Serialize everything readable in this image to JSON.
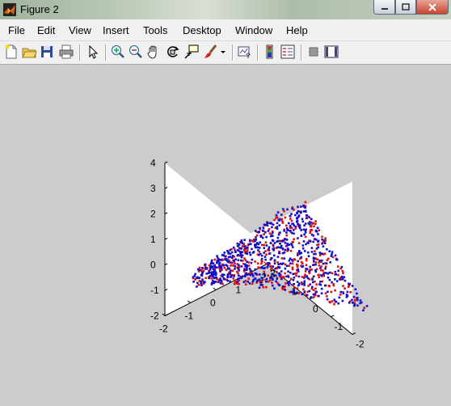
{
  "window": {
    "title": "Figure 2"
  },
  "menu": [
    "File",
    "Edit",
    "View",
    "Insert",
    "Tools",
    "Desktop",
    "Window",
    "Help"
  ],
  "toolbar": [
    "new-figure-icon",
    "open-file-icon",
    "save-icon",
    "print-icon",
    "edit-plot-arrow-icon",
    "zoom-in-icon",
    "zoom-out-icon",
    "pan-hand-icon",
    "rotate-3d-icon",
    "data-cursor-icon",
    "brush-icon",
    "brush-dropdown-icon",
    "link-plot-icon",
    "insert-colorbar-icon",
    "insert-legend-icon",
    "hide-plot-tools-icon",
    "show-plot-tools-icon"
  ],
  "colors": {
    "series_a": "#dd1111",
    "series_b": "#1111cc",
    "figure_bg": "#cccccc",
    "axes_bg": "#ffffff"
  },
  "chart_data": {
    "type": "scatter3d",
    "series": [
      {
        "color": "#dd1111",
        "marker": "dot",
        "points": "saddle-shaped surface, ~400 points"
      },
      {
        "color": "#1111cc",
        "marker": "dot",
        "points": "saddle-shaped surface, ~600 points"
      }
    ],
    "xlim": [
      -2,
      2
    ],
    "ylim": [
      -2,
      2
    ],
    "zlim": [
      -2,
      4
    ],
    "x_ticks": [
      "-2",
      "-1",
      "0",
      "1",
      "2"
    ],
    "y_ticks": [
      "2",
      "1",
      "0",
      "-1",
      "-2"
    ],
    "z_ticks": [
      "4",
      "3",
      "2",
      "1",
      "0",
      "-1",
      "-2"
    ],
    "grid": false
  }
}
